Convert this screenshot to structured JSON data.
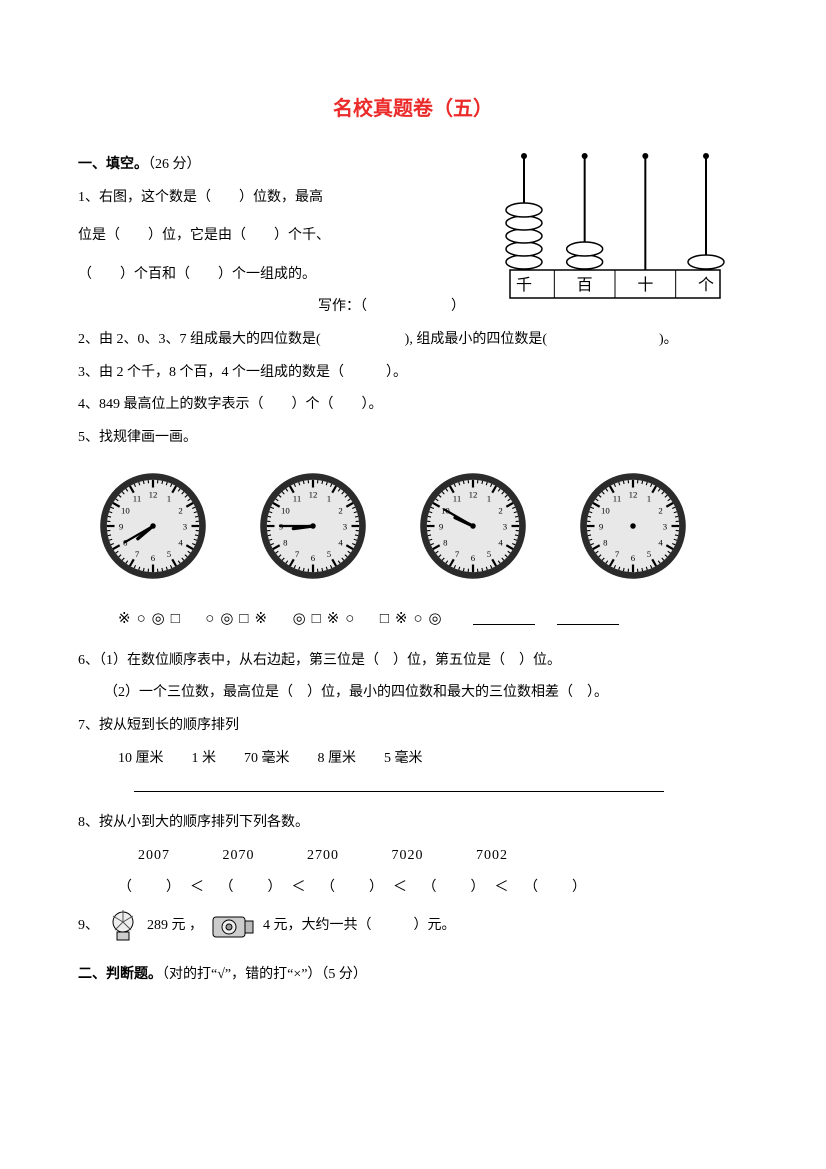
{
  "colors": {
    "title": "#eb2a2a",
    "text": "#000000",
    "stroke": "#000000",
    "clock_fill": "#e8e8e8",
    "clock_rim": "#2b2b2b",
    "bg": "#ffffff"
  },
  "title": "名校真题卷（五）",
  "section1": {
    "header": "一、填空。",
    "points": "（26 分）",
    "q1_a": "1、右图，这个数是（　　）位数，最高",
    "q1_b": "位是（　　）位，它是由（　　）个千、",
    "q1_c": "（　　）个百和（　　）个一组成的。",
    "q1_write": "写作：（　　　　　　）",
    "q2": "2、由 2、0、3、7 组成最大的四位数是(　　　　　　), 组成最小的四位数是(　　　　　　　　)。",
    "q3": "3、由 2 个千，8 个百，4 个一组成的数是（　　　）。",
    "q4": "4、849 最高位上的数字表示（　　）个（　　）。",
    "q5": "5、找规律画一画。",
    "symbol_groups": [
      "※○◎□",
      "○◎□※",
      "◎□※○",
      "□※○◎"
    ],
    "q6_a": "6、（1）在数位顺序表中，从右边起，第三位是（　）位，第五位是（　）位。",
    "q6_b": "（2）一个三位数，最高位是（　）位，最小的四位数和最大的三位数相差（　）。",
    "q7": "7、按从短到长的顺序排列",
    "q7_items": "10 厘米　　1 米　　70 毫米　　8 厘米　　5 毫米",
    "q8": "8、按从小到大的顺序排列下列各数。",
    "q8_nums": [
      "2007",
      "2070",
      "2700",
      "7020",
      "7002"
    ],
    "q9_a": "9、",
    "q9_b": "289 元 ，",
    "q9_c": "4 元，大约一共（　　　）元。"
  },
  "section2": {
    "header": "二、判断题。",
    "points": "（对的打“√”，错的打“×”）（5 分）"
  },
  "abacus": {
    "labels": [
      "千",
      "百",
      "十",
      "个"
    ],
    "beads": [
      5,
      2,
      0,
      1
    ],
    "stroke": "#000000",
    "fontsize": 16
  },
  "clocks": {
    "count": 4,
    "rim_color": "#2b2b2b",
    "face_color": "#e8e8e8",
    "tick_color": "#000000",
    "hand_color": "#000000",
    "times": [
      {
        "hour": 7,
        "minute": 40,
        "show_hands": true
      },
      {
        "hour": 8,
        "minute": 45,
        "show_hands": true
      },
      {
        "hour": 9,
        "minute": 50,
        "show_hands": true
      },
      {
        "hour": 0,
        "minute": 0,
        "show_hands": false
      }
    ]
  }
}
